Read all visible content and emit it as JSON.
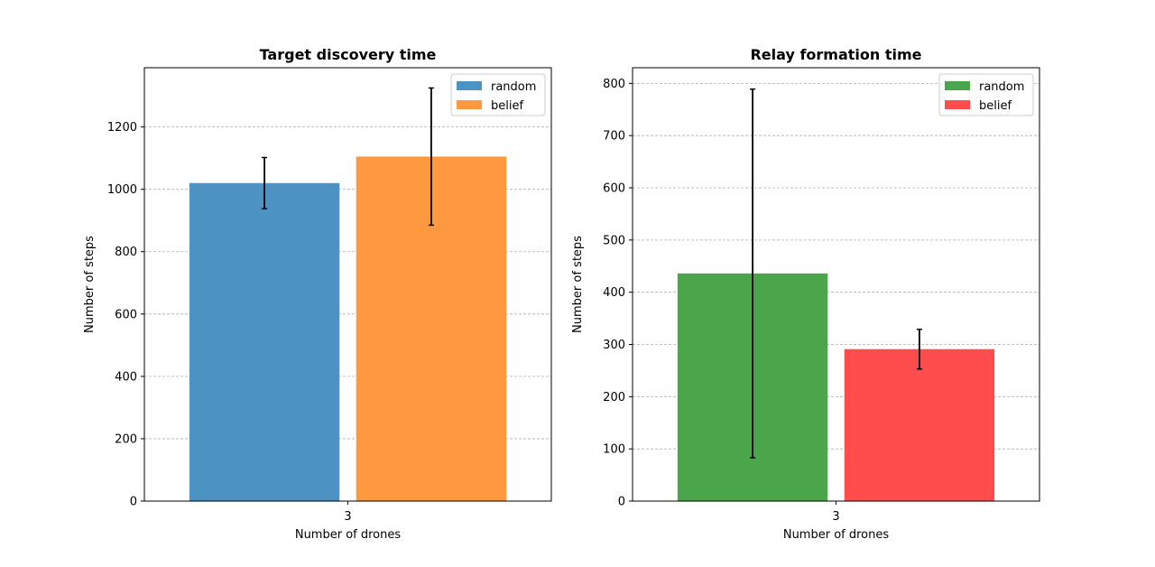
{
  "chart_data": [
    {
      "type": "bar",
      "title": "Target discovery time",
      "xlabel": "Number of drones",
      "ylabel": "Number of steps",
      "categories": [
        "3"
      ],
      "ylim": [
        0,
        1390
      ],
      "yticks": [
        "0",
        "200",
        "400",
        "600",
        "800",
        "1000",
        "1200"
      ],
      "grid": "y, dashed",
      "legend_position": "top-right",
      "series": [
        {
          "name": "random",
          "color": "#4c93c3",
          "values": [
            1020
          ],
          "error": [
            82
          ]
        },
        {
          "name": "belief",
          "color": "#ff993f",
          "values": [
            1105
          ],
          "error": [
            220
          ]
        }
      ]
    },
    {
      "type": "bar",
      "title": "Relay formation time",
      "xlabel": "Number of drones",
      "ylabel": "Number of steps",
      "categories": [
        "3"
      ],
      "ylim": [
        0,
        830
      ],
      "yticks": [
        "0",
        "100",
        "200",
        "300",
        "400",
        "500",
        "600",
        "700",
        "800"
      ],
      "grid": "y, dashed",
      "legend_position": "top-right",
      "series": [
        {
          "name": "random",
          "color": "#4ba64b",
          "values": [
            436
          ],
          "error": [
            353
          ]
        },
        {
          "name": "belief",
          "color": "#ff4d4d",
          "values": [
            291
          ],
          "error": [
            38
          ]
        }
      ]
    }
  ]
}
